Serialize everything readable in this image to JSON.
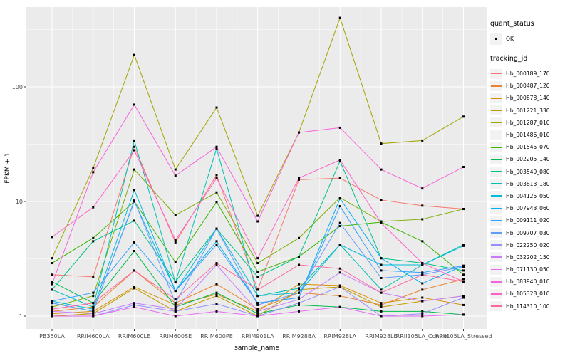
{
  "style": {
    "panel_bg": "#EBEBEB",
    "grid_color": "#FFFFFF",
    "tick_label_color": "#4D4D4D",
    "axis_title_color": "#000000",
    "marker_color": "#000000",
    "legend_key_bg": "#F2F2F2"
  },
  "legend": {
    "quant_status_title": "quant_status",
    "quant_status_items": [
      {
        "label": "OK",
        "marker": "black-square"
      }
    ],
    "tracking_title": "tracking_id"
  },
  "chart_data": {
    "type": "line",
    "title": "",
    "xlabel": "sample_name",
    "ylabel": "FPKM + 1",
    "y_scale": "log10",
    "y_ticks": [
      1,
      10,
      100
    ],
    "ylim": [
      0.8,
      560
    ],
    "grid": true,
    "legend_position": "right",
    "marker": "small-black-square",
    "categories": [
      "PB350LA",
      "RRIM600LA",
      "RRIM600LE",
      "RRIM600SE",
      "RRIM600PE",
      "RRIM901LA",
      "RRIM928BA",
      "RRIM928LA",
      "RRIM928LE",
      "RRII105LA_Control",
      "RRII105LA_Stressed"
    ],
    "series": [
      {
        "name": "Hb_000189_170",
        "color": "#F8766D",
        "values": [
          2.3,
          2.2,
          30,
          4.4,
          17,
          1.7,
          15.5,
          16,
          10.3,
          9.2,
          8.6
        ]
      },
      {
        "name": "Hb_000487_120",
        "color": "#EA8331",
        "values": [
          1.1,
          1.2,
          2.5,
          1.3,
          1.9,
          1.15,
          1.6,
          1.5,
          1.25,
          1.7,
          2.1
        ]
      },
      {
        "name": "Hb_000878_140",
        "color": "#D89000",
        "values": [
          1.05,
          1.1,
          1.8,
          1.25,
          1.55,
          1.1,
          1.9,
          1.85,
          1.3,
          1.45,
          1.25
        ]
      },
      {
        "name": "Hb_001221_330",
        "color": "#C09B00",
        "values": [
          1.0,
          1.05,
          1.75,
          1.1,
          1.5,
          1.0,
          1.7,
          1.8,
          1.2,
          1.35,
          1.5
        ]
      },
      {
        "name": "Hb_001287_010",
        "color": "#A3A500",
        "values": [
          3.2,
          19.5,
          190,
          19,
          66,
          7.5,
          40,
          400,
          32,
          34,
          55
        ]
      },
      {
        "name": "Hb_001486_010",
        "color": "#7CAE00",
        "values": [
          1.2,
          1.5,
          19,
          7.6,
          12,
          2.9,
          4.8,
          10.8,
          6.7,
          7.0,
          8.6
        ]
      },
      {
        "name": "Hb_001545_070",
        "color": "#39B600",
        "values": [
          2.9,
          4.8,
          10,
          2.95,
          9.9,
          2.44,
          3.3,
          6.1,
          6.6,
          4.5,
          2.3
        ]
      },
      {
        "name": "Hb_002205_140",
        "color": "#00BB4E",
        "values": [
          2.0,
          1.3,
          3.7,
          1.2,
          1.6,
          1.05,
          1.25,
          1.2,
          1.1,
          1.1,
          1.03
        ]
      },
      {
        "name": "Hb_003549_080",
        "color": "#00C087",
        "values": [
          1.7,
          4.5,
          6.8,
          2.0,
          5.8,
          2.2,
          3.3,
          22.5,
          3.2,
          2.9,
          2.5
        ]
      },
      {
        "name": "Hb_003813_180",
        "color": "#00C0B4",
        "values": [
          1.7,
          1.2,
          34,
          1.97,
          29,
          1.5,
          1.75,
          4.2,
          1.7,
          2.8,
          4.2
        ]
      },
      {
        "name": "Hb_004125_050",
        "color": "#00BCD8",
        "values": [
          1.35,
          1.15,
          12.6,
          1.66,
          5.8,
          1.5,
          1.6,
          4.2,
          2.8,
          2.8,
          4.1
        ]
      },
      {
        "name": "Hb_007943_060",
        "color": "#00B0F6",
        "values": [
          1.3,
          1.1,
          10,
          1.66,
          4.5,
          1.3,
          1.45,
          10.6,
          3.2,
          1.93,
          2.75
        ]
      },
      {
        "name": "Hb_009111_020",
        "color": "#35A2FF",
        "values": [
          1.35,
          1.6,
          4.4,
          1.66,
          4.2,
          1.3,
          1.45,
          9.1,
          2.5,
          2.4,
          2.75
        ]
      },
      {
        "name": "Hb_009707_030",
        "color": "#619CFF",
        "values": [
          1.3,
          1.1,
          10.2,
          1.3,
          5.8,
          1.25,
          1.6,
          6.5,
          2.15,
          2.3,
          2.7
        ]
      },
      {
        "name": "Hb_022250_020",
        "color": "#9590FF",
        "values": [
          1.0,
          1.0,
          1.25,
          1.1,
          1.28,
          1.0,
          1.3,
          1.8,
          1.0,
          1.05,
          1.45
        ]
      },
      {
        "name": "Hb_032202_150",
        "color": "#C77CFF",
        "values": [
          1.1,
          1.05,
          1.3,
          1.15,
          2.8,
          1.1,
          1.4,
          2.4,
          1.6,
          1.35,
          1.5
        ]
      },
      {
        "name": "Hb_071130_050",
        "color": "#E76BF3",
        "values": [
          1.0,
          1.0,
          1.2,
          1.0,
          1.1,
          1.0,
          1.1,
          1.2,
          1.0,
          1.0,
          1.03
        ]
      },
      {
        "name": "Hb_083940_010",
        "color": "#FA62DB",
        "values": [
          1.9,
          18,
          70,
          16.8,
          30,
          6.7,
          40,
          44,
          19,
          13,
          20
        ]
      },
      {
        "name": "Hb_105328_010",
        "color": "#FF61C9",
        "values": [
          4.9,
          8.9,
          28,
          4.6,
          16,
          3.2,
          16,
          23,
          6.5,
          2.9,
          2.0
        ]
      },
      {
        "name": "Hb_114310_100",
        "color": "#FF689E",
        "values": [
          1.15,
          1.3,
          2.5,
          1.4,
          2.9,
          1.7,
          2.8,
          2.6,
          1.6,
          2.3,
          2.0
        ]
      }
    ]
  }
}
